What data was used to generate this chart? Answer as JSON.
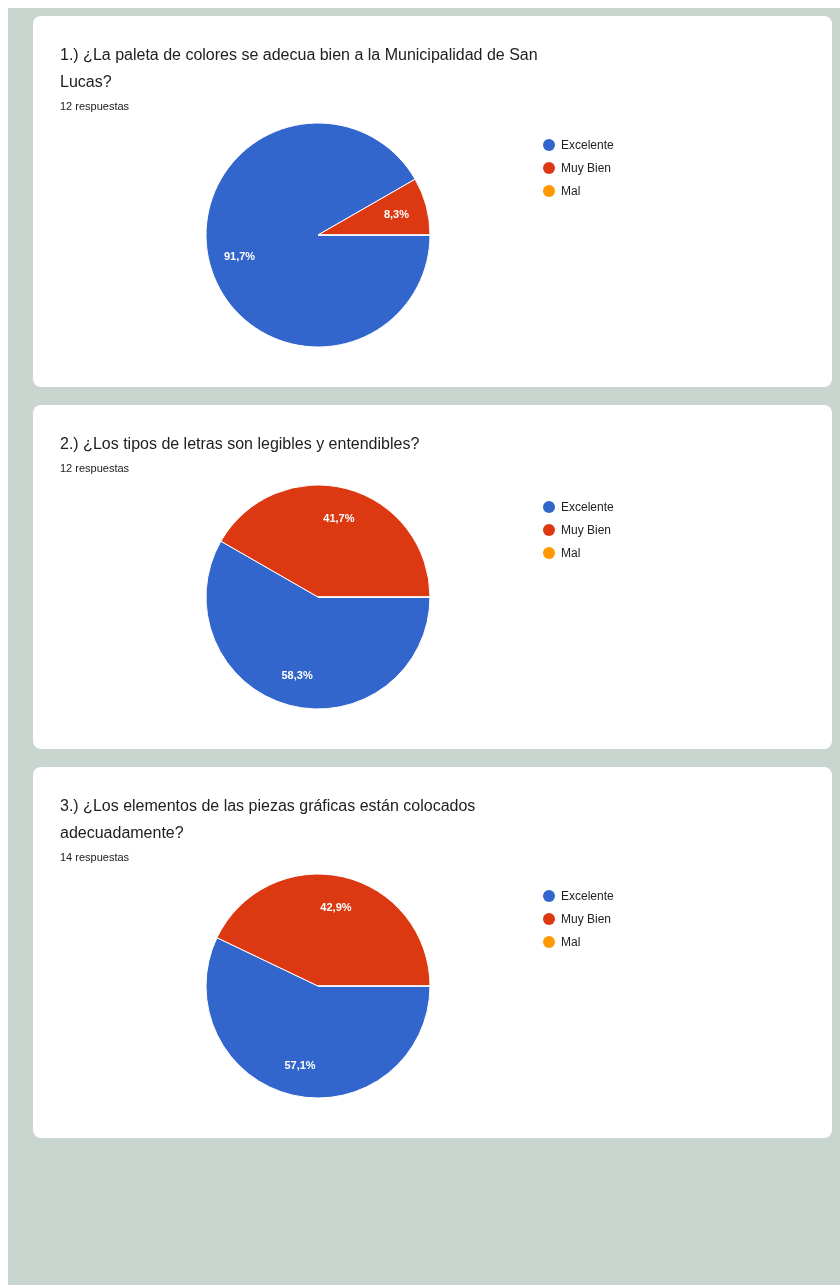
{
  "chart_data": [
    {
      "type": "pie",
      "title": "1.) ¿La paleta de colores se adecua bien a la Municipalidad de San Lucas?",
      "subtitle": "12 respuestas",
      "categories": [
        "Excelente",
        "Muy Bien",
        "Mal"
      ],
      "values": [
        91.7,
        8.3,
        0
      ],
      "colors": [
        "#3366cc",
        "#dc3912",
        "#ff9900"
      ],
      "value_labels": [
        "91,7%",
        "8,3%",
        null
      ],
      "legend": "top right"
    },
    {
      "type": "pie",
      "title": "2.) ¿Los tipos de letras son legibles y entendibles?",
      "subtitle": "12 respuestas",
      "categories": [
        "Excelente",
        "Muy Bien",
        "Mal"
      ],
      "values": [
        58.3,
        41.7,
        0
      ],
      "colors": [
        "#3366cc",
        "#dc3912",
        "#ff9900"
      ],
      "value_labels": [
        "58,3%",
        "41,7%",
        null
      ],
      "legend": "top right"
    },
    {
      "type": "pie",
      "title": "3.) ¿Los elementos de las piezas gráficas están colocados adecuadamente?",
      "subtitle": "14 respuestas",
      "categories": [
        "Excelente",
        "Muy Bien",
        "Mal"
      ],
      "values": [
        57.1,
        42.9,
        0
      ],
      "colors": [
        "#3366cc",
        "#dc3912",
        "#ff9900"
      ],
      "value_labels": [
        "57,1%",
        "42,9%",
        null
      ],
      "legend": "top right"
    }
  ]
}
